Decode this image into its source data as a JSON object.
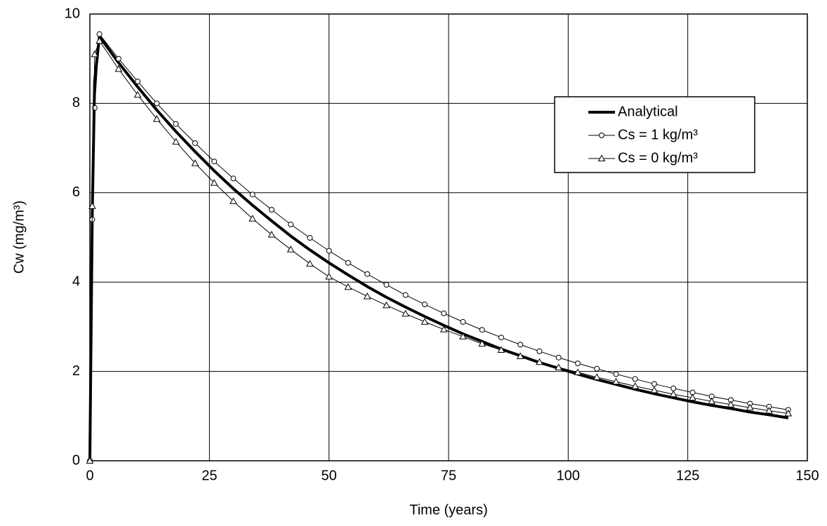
{
  "chart_data": {
    "type": "line",
    "x_label": "Time (years)",
    "y_label": "Cw (mg/m³)",
    "x": [
      0,
      0.5,
      1,
      2,
      6,
      10,
      14,
      18,
      22,
      26,
      30,
      34,
      38,
      42,
      46,
      50,
      54,
      58,
      62,
      66,
      70,
      74,
      78,
      82,
      86,
      90,
      94,
      98,
      102,
      106,
      110,
      114,
      118,
      122,
      126,
      130,
      134,
      138,
      142,
      146
    ],
    "series": [
      {
        "name": "Analytical",
        "color": "#000000",
        "marker": "none",
        "line_width": 4,
        "values": [
          0,
          5.5,
          8.5,
          9.5,
          8.91,
          8.37,
          7.85,
          7.37,
          6.92,
          6.49,
          6.09,
          5.72,
          5.37,
          5.03,
          4.72,
          4.43,
          4.16,
          3.9,
          3.66,
          3.44,
          3.23,
          3.03,
          2.84,
          2.67,
          2.5,
          2.35,
          2.2,
          2.07,
          1.94,
          1.82,
          1.71,
          1.6,
          1.5,
          1.41,
          1.32,
          1.24,
          1.17,
          1.09,
          1.03,
          0.96
        ]
      },
      {
        "name": "Cs = 1  kg/m³",
        "color": "#000000",
        "marker": "circle",
        "line_width": 1,
        "values": [
          0,
          5.4,
          7.9,
          9.55,
          9.0,
          8.49,
          8.0,
          7.54,
          7.11,
          6.7,
          6.32,
          5.96,
          5.62,
          5.29,
          4.99,
          4.7,
          4.43,
          4.18,
          3.94,
          3.71,
          3.5,
          3.3,
          3.11,
          2.93,
          2.76,
          2.6,
          2.45,
          2.31,
          2.18,
          2.06,
          1.94,
          1.83,
          1.72,
          1.62,
          1.53,
          1.44,
          1.36,
          1.28,
          1.21,
          1.14
        ]
      },
      {
        "name": "Cs = 0  kg/m³",
        "color": "#000000",
        "marker": "triangle",
        "line_width": 1,
        "values": [
          0,
          5.7,
          9.1,
          9.4,
          8.77,
          8.19,
          7.65,
          7.14,
          6.66,
          6.22,
          5.81,
          5.42,
          5.06,
          4.73,
          4.41,
          4.12,
          3.89,
          3.68,
          3.48,
          3.29,
          3.11,
          2.94,
          2.78,
          2.62,
          2.48,
          2.34,
          2.21,
          2.09,
          1.98,
          1.87,
          1.77,
          1.67,
          1.58,
          1.49,
          1.41,
          1.33,
          1.26,
          1.19,
          1.12,
          1.06
        ]
      }
    ],
    "xlim": [
      0,
      150
    ],
    "xticks": [
      0,
      25,
      50,
      75,
      100,
      125,
      150
    ],
    "ylim": [
      0,
      10
    ],
    "yticks": [
      0,
      2,
      4,
      6,
      8,
      10
    ],
    "grid": true,
    "legend": "upper right"
  }
}
